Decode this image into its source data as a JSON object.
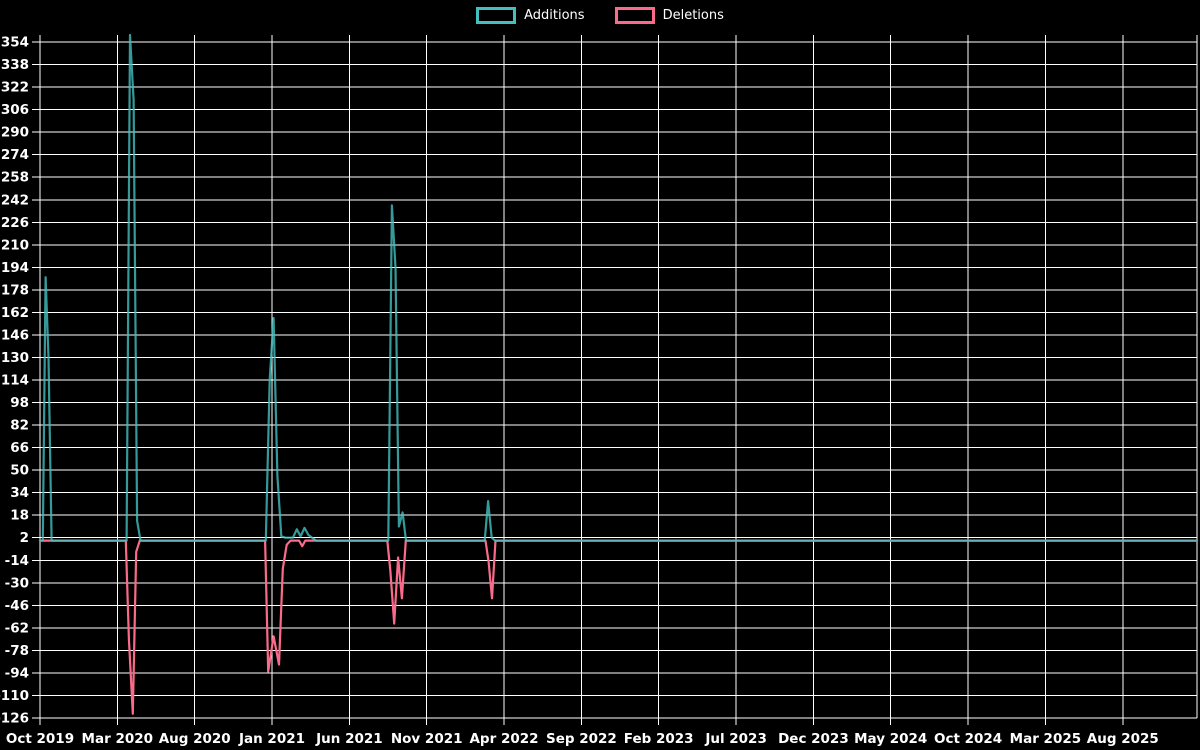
{
  "page": {
    "background": "#000000",
    "grid_color": "#ffffff",
    "text_color": "#ffffff"
  },
  "legend": {
    "items": [
      {
        "label": "Additions",
        "color": "#43bfc0"
      },
      {
        "label": "Deletions",
        "color": "#fa6b8b"
      }
    ]
  },
  "chart_data": {
    "type": "line",
    "title": "",
    "xlabel": "",
    "ylabel": "",
    "legend_position": "top-center",
    "grid": {
      "show": true,
      "color": "#ffffff"
    },
    "x_axis": {
      "tick_labels": [
        "Oct 2019",
        "Mar 2020",
        "Aug 2020",
        "Jan 2021",
        "Jun 2021",
        "Nov 2021",
        "Apr 2022",
        "Sep 2022",
        "Feb 2023",
        "Jul 2023",
        "Dec 2023",
        "May 2024",
        "Oct 2024",
        "Mar 2025",
        "Aug 2025"
      ],
      "tick_month_offsets": [
        0,
        5,
        10,
        15,
        20,
        25,
        30,
        35,
        40,
        45,
        50,
        55,
        60,
        65,
        70
      ],
      "domain": [
        0,
        74.8
      ]
    },
    "y_axis": {
      "tick_values": [
        354,
        338,
        322,
        306,
        290,
        274,
        258,
        242,
        226,
        210,
        194,
        178,
        162,
        146,
        130,
        114,
        98,
        82,
        66,
        50,
        34,
        18,
        2,
        -14,
        -30,
        -46,
        -62,
        -78,
        -94,
        -110,
        -126
      ],
      "range": [
        -126,
        359
      ]
    },
    "series": [
      {
        "name": "Additions",
        "color": "#43bfc0",
        "points": [
          [
            0.0,
            0
          ],
          [
            0.18,
            0
          ],
          [
            0.36,
            187
          ],
          [
            0.55,
            130
          ],
          [
            0.75,
            0
          ],
          [
            5.6,
            0
          ],
          [
            5.82,
            359
          ],
          [
            6.05,
            313
          ],
          [
            6.28,
            14
          ],
          [
            6.5,
            0
          ],
          [
            14.6,
            0
          ],
          [
            14.85,
            114
          ],
          [
            15.1,
            158
          ],
          [
            15.35,
            46
          ],
          [
            15.6,
            3
          ],
          [
            15.85,
            2
          ],
          [
            16.35,
            2
          ],
          [
            16.6,
            8
          ],
          [
            16.85,
            3
          ],
          [
            17.1,
            9
          ],
          [
            17.35,
            4
          ],
          [
            17.6,
            2
          ],
          [
            17.85,
            0
          ],
          [
            22.52,
            0
          ],
          [
            22.75,
            238
          ],
          [
            22.98,
            194
          ],
          [
            23.2,
            10
          ],
          [
            23.44,
            20
          ],
          [
            23.66,
            0
          ],
          [
            28.75,
            0
          ],
          [
            28.97,
            28
          ],
          [
            29.2,
            2
          ],
          [
            29.42,
            0
          ],
          [
            74.8,
            0
          ]
        ]
      },
      {
        "name": "Deletions",
        "color": "#fa6b8b",
        "points": [
          [
            0.0,
            0
          ],
          [
            5.55,
            0
          ],
          [
            5.75,
            -70
          ],
          [
            6.0,
            -123
          ],
          [
            6.22,
            -8
          ],
          [
            6.45,
            0
          ],
          [
            14.55,
            0
          ],
          [
            14.75,
            -93
          ],
          [
            15.1,
            -68
          ],
          [
            15.45,
            -88
          ],
          [
            15.7,
            -20
          ],
          [
            15.95,
            -3
          ],
          [
            16.2,
            0
          ],
          [
            16.75,
            0
          ],
          [
            16.95,
            -4
          ],
          [
            17.15,
            0
          ],
          [
            22.45,
            0
          ],
          [
            22.65,
            -21
          ],
          [
            22.9,
            -59
          ],
          [
            23.15,
            -12
          ],
          [
            23.4,
            -41
          ],
          [
            23.65,
            0
          ],
          [
            28.8,
            0
          ],
          [
            29.0,
            -15
          ],
          [
            29.22,
            -41
          ],
          [
            29.45,
            0
          ],
          [
            74.8,
            0
          ]
        ]
      }
    ]
  }
}
